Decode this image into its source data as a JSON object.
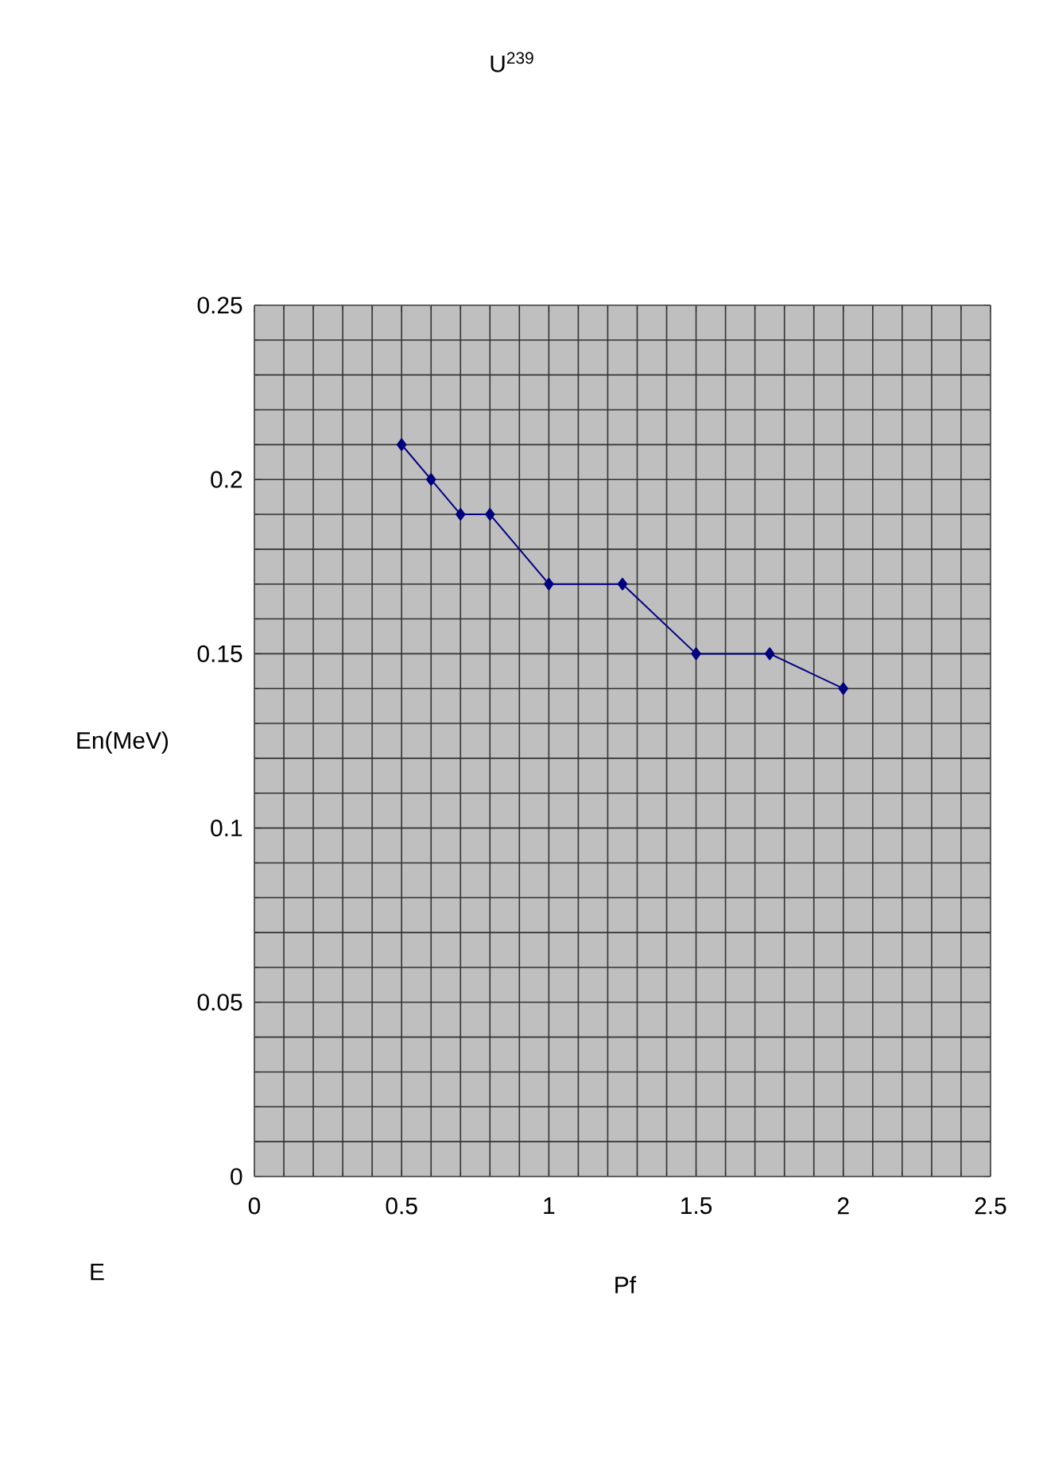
{
  "chart_data": {
    "type": "line",
    "title": "U$^{239}$",
    "xlabel": "Pf",
    "ylabel": "En(MeV)",
    "annotations": [
      "E"
    ],
    "x": [
      0.5,
      0.6,
      0.7,
      0.8,
      1,
      1.25,
      1.5,
      1.75,
      2
    ],
    "series": [
      {
        "color": "#000080",
        "values": [
          0.21,
          0.2,
          0.19,
          0.19,
          0.17,
          0.17,
          0.15,
          0.15,
          0.14
        ]
      }
    ],
    "xlim": [
      0,
      2.5
    ],
    "ylim": [
      0,
      0.25
    ],
    "xticks": [
      0,
      0.5,
      1,
      1.5,
      2,
      2.5
    ],
    "yticks": [
      0,
      0.05,
      0.1,
      0.15,
      0.2,
      0.25
    ],
    "grid": true,
    "marker": "diamond",
    "line_style": "solid"
  }
}
